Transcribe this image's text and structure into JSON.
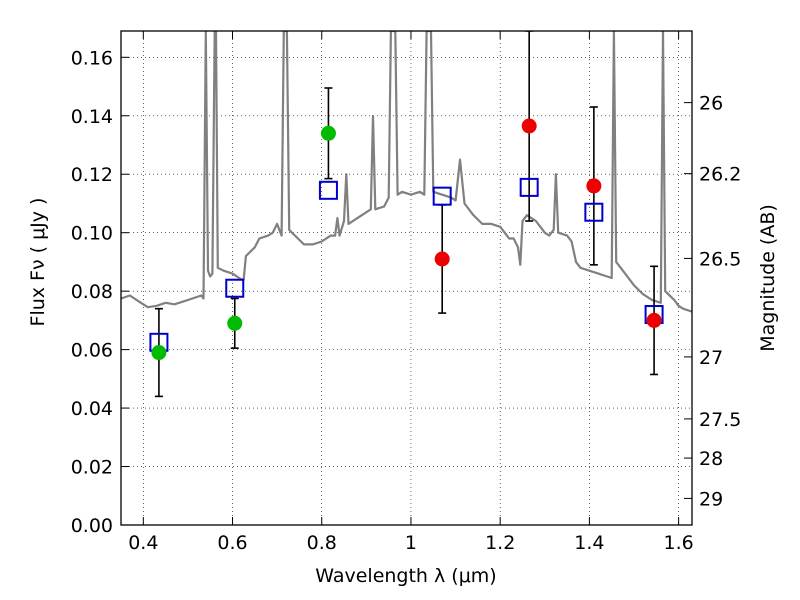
{
  "chart_data": {
    "type": "scatter",
    "title": "",
    "xlabel": "Wavelength  λ (μm)",
    "ylabel": "Flux  Fν  ( μJy )",
    "y2label": "Magnitude (AB)",
    "xlim": [
      0.35,
      1.63
    ],
    "ylim": [
      0.0,
      0.169
    ],
    "grid": true,
    "x_ticks": [
      {
        "value": 0.4,
        "label": "0.4"
      },
      {
        "value": 0.6,
        "label": "0.6"
      },
      {
        "value": 0.8,
        "label": "0.8"
      },
      {
        "value": 1.0,
        "label": "1"
      },
      {
        "value": 1.2,
        "label": "1.2"
      },
      {
        "value": 1.4,
        "label": "1.4"
      },
      {
        "value": 1.6,
        "label": "1.6"
      }
    ],
    "y_ticks": [
      {
        "value": 0.0,
        "label": "0.00"
      },
      {
        "value": 0.02,
        "label": "0.02"
      },
      {
        "value": 0.04,
        "label": "0.04"
      },
      {
        "value": 0.06,
        "label": "0.06"
      },
      {
        "value": 0.08,
        "label": "0.08"
      },
      {
        "value": 0.1,
        "label": "0.10"
      },
      {
        "value": 0.12,
        "label": "0.12"
      },
      {
        "value": 0.14,
        "label": "0.14"
      },
      {
        "value": 0.16,
        "label": "0.16"
      }
    ],
    "y2_ticks": [
      {
        "label": "26",
        "flux": 0.1445
      },
      {
        "label": "26.2",
        "flux": 0.1202
      },
      {
        "label": "26.5",
        "flux": 0.0912
      },
      {
        "label": "27",
        "flux": 0.0575
      },
      {
        "label": "27.5",
        "flux": 0.0363
      },
      {
        "label": "28",
        "flux": 0.0229
      },
      {
        "label": "29",
        "flux": 0.0091
      }
    ],
    "colors": {
      "spectrum": "#808080",
      "model": "#0000cc",
      "optical": "#00bb00",
      "nir": "#ee0000",
      "errorbar": "#000000"
    },
    "series": [
      {
        "marker": "line",
        "points": [
          [
            0.35,
            0.0775
          ],
          [
            0.37,
            0.0785
          ],
          [
            0.39,
            0.0765
          ],
          [
            0.41,
            0.0745
          ],
          [
            0.43,
            0.075
          ],
          [
            0.45,
            0.076
          ],
          [
            0.47,
            0.0755
          ],
          [
            0.49,
            0.0765
          ],
          [
            0.51,
            0.0775
          ],
          [
            0.53,
            0.0785
          ],
          [
            0.535,
            0.0775
          ],
          [
            0.54,
            0.169
          ],
          [
            0.545,
            0.087
          ],
          [
            0.55,
            0.085
          ],
          [
            0.555,
            0.086
          ],
          [
            0.56,
            0.169
          ],
          [
            0.563,
            0.169
          ],
          [
            0.567,
            0.088
          ],
          [
            0.58,
            0.087
          ],
          [
            0.6,
            0.086
          ],
          [
            0.62,
            0.084
          ],
          [
            0.625,
            0.084
          ],
          [
            0.63,
            0.092
          ],
          [
            0.65,
            0.095
          ],
          [
            0.66,
            0.098
          ],
          [
            0.68,
            0.099
          ],
          [
            0.69,
            0.1
          ],
          [
            0.7,
            0.103
          ],
          [
            0.71,
            0.099
          ],
          [
            0.715,
            0.169
          ],
          [
            0.722,
            0.169
          ],
          [
            0.727,
            0.101
          ],
          [
            0.74,
            0.099
          ],
          [
            0.76,
            0.096
          ],
          [
            0.78,
            0.096
          ],
          [
            0.8,
            0.097
          ],
          [
            0.82,
            0.099
          ],
          [
            0.83,
            0.099
          ],
          [
            0.835,
            0.105
          ],
          [
            0.84,
            0.099
          ],
          [
            0.85,
            0.104
          ],
          [
            0.855,
            0.12
          ],
          [
            0.86,
            0.103
          ],
          [
            0.88,
            0.105
          ],
          [
            0.9,
            0.107
          ],
          [
            0.91,
            0.108
          ],
          [
            0.915,
            0.14
          ],
          [
            0.92,
            0.108
          ],
          [
            0.94,
            0.109
          ],
          [
            0.95,
            0.112
          ],
          [
            0.955,
            0.169
          ],
          [
            0.965,
            0.169
          ],
          [
            0.97,
            0.113
          ],
          [
            0.98,
            0.114
          ],
          [
            1.0,
            0.113
          ],
          [
            1.02,
            0.114
          ],
          [
            1.03,
            0.113
          ],
          [
            1.035,
            0.169
          ],
          [
            1.045,
            0.169
          ],
          [
            1.05,
            0.114
          ],
          [
            1.07,
            0.113
          ],
          [
            1.09,
            0.112
          ],
          [
            1.1,
            0.111
          ],
          [
            1.11,
            0.125
          ],
          [
            1.12,
            0.11
          ],
          [
            1.14,
            0.106
          ],
          [
            1.16,
            0.103
          ],
          [
            1.18,
            0.103
          ],
          [
            1.2,
            0.102
          ],
          [
            1.22,
            0.098
          ],
          [
            1.23,
            0.098
          ],
          [
            1.24,
            0.095
          ],
          [
            1.245,
            0.089
          ],
          [
            1.25,
            0.104
          ],
          [
            1.26,
            0.106
          ],
          [
            1.28,
            0.104
          ],
          [
            1.3,
            0.1
          ],
          [
            1.31,
            0.099
          ],
          [
            1.32,
            0.101
          ],
          [
            1.325,
            0.12
          ],
          [
            1.33,
            0.1
          ],
          [
            1.35,
            0.099
          ],
          [
            1.36,
            0.097
          ],
          [
            1.37,
            0.09
          ],
          [
            1.38,
            0.088
          ],
          [
            1.4,
            0.087
          ],
          [
            1.42,
            0.086
          ],
          [
            1.44,
            0.085
          ],
          [
            1.45,
            0.0845
          ],
          [
            1.455,
            0.169
          ],
          [
            1.46,
            0.09
          ],
          [
            1.48,
            0.086
          ],
          [
            1.5,
            0.082
          ],
          [
            1.52,
            0.079
          ],
          [
            1.54,
            0.077
          ],
          [
            1.56,
            0.076
          ],
          [
            1.565,
            0.169
          ],
          [
            1.57,
            0.08
          ],
          [
            1.59,
            0.077
          ],
          [
            1.6,
            0.075
          ],
          [
            1.61,
            0.074
          ],
          [
            1.63,
            0.073
          ]
        ]
      },
      {
        "marker": "open-square",
        "x": [
          0.435,
          0.605,
          0.815,
          1.07,
          1.265,
          1.41,
          1.545
        ],
        "y": [
          0.0625,
          0.081,
          0.1145,
          0.1125,
          0.1155,
          0.107,
          0.072
        ]
      },
      {
        "marker": "filled-circle",
        "x": [
          0.435,
          0.605,
          0.815
        ],
        "y": [
          0.059,
          0.069,
          0.134
        ],
        "yerr": [
          0.015,
          0.0085,
          0.0155
        ]
      },
      {
        "marker": "filled-circle",
        "x": [
          1.07,
          1.265,
          1.41,
          1.545
        ],
        "y": [
          0.091,
          0.1365,
          0.116,
          0.07
        ],
        "yerr": [
          0.0185,
          0.0325,
          0.027,
          0.0185
        ]
      }
    ]
  }
}
